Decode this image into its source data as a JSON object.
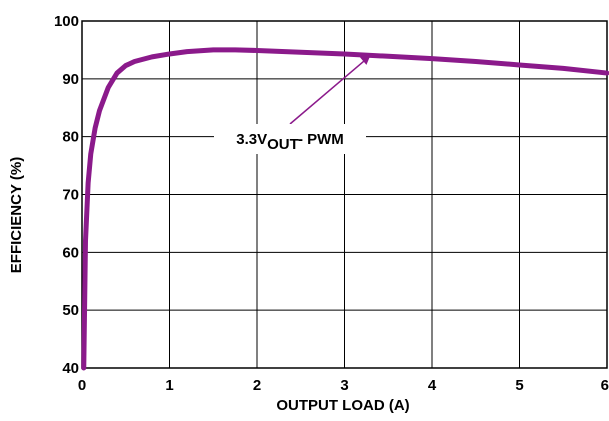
{
  "chart_data": {
    "type": "line",
    "xlabel": "OUTPUT LOAD (A)",
    "ylabel": "EFFICIENCY (%)",
    "xlim": [
      0,
      6
    ],
    "ylim": [
      40,
      100
    ],
    "xticks": [
      0,
      1,
      2,
      3,
      4,
      5,
      6
    ],
    "yticks": [
      40,
      50,
      60,
      70,
      80,
      90,
      100
    ],
    "grid": true,
    "series": [
      {
        "color": "#8B1A8B",
        "x": [
          0.02,
          0.04,
          0.07,
          0.1,
          0.15,
          0.2,
          0.3,
          0.4,
          0.5,
          0.6,
          0.8,
          1.0,
          1.2,
          1.5,
          1.75,
          2.0,
          2.5,
          3.0,
          3.5,
          4.0,
          4.5,
          5.0,
          5.5,
          6.0
        ],
        "y": [
          40,
          62,
          72,
          77,
          81.5,
          84.5,
          88.5,
          91,
          92.3,
          93,
          93.8,
          94.3,
          94.7,
          95.0,
          95.0,
          94.9,
          94.6,
          94.3,
          93.9,
          93.5,
          93.0,
          92.4,
          91.8,
          91.0
        ]
      }
    ],
    "annotations": [
      {
        "text_main": "3.3V",
        "text_sub": "OUT",
        "text_suffix": "- PWM",
        "target_x": 3.3,
        "target_y": 94.2
      }
    ]
  }
}
